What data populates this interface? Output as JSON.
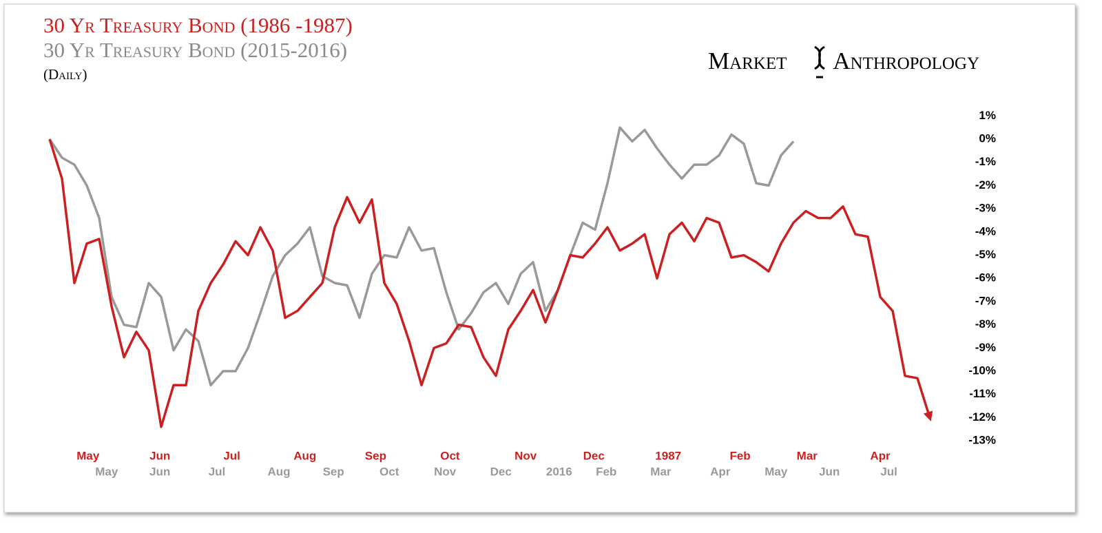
{
  "chart_data": {
    "type": "line",
    "title": "30 Yr Treasury Bond (1986 -1987)",
    "subtitle": "30 Yr Treasury Bond (2015-2016)",
    "note": "(Daily)",
    "brand": "Market Anthropology",
    "series": [
      {
        "name": "30 Yr Treasury Bond (1986 -1987)",
        "color": "#cc1f1f",
        "values": [
          0,
          -1.7,
          -6.2,
          -4.5,
          -4.3,
          -7.2,
          -9.4,
          -8.3,
          -9.1,
          -12.4,
          -10.6,
          -10.6,
          -7.4,
          -6.2,
          -5.4,
          -4.4,
          -5.0,
          -3.8,
          -4.8,
          -7.7,
          -7.4,
          -6.8,
          -6.2,
          -3.8,
          -2.5,
          -3.6,
          -2.6,
          -6.2,
          -7.1,
          -8.7,
          -10.6,
          -9.0,
          -8.8,
          -8.0,
          -8.1,
          -9.4,
          -10.2,
          -8.2,
          -7.4,
          -6.5,
          -7.9,
          -6.5,
          -5.0,
          -5.1,
          -4.5,
          -3.8,
          -4.8,
          -4.5,
          -4.1,
          -6.0,
          -4.1,
          -3.6,
          -4.4,
          -3.4,
          -3.6,
          -5.1,
          -5.0,
          -5.3,
          -5.7,
          -4.5,
          -3.6,
          -3.1,
          -3.4,
          -3.4,
          -2.9,
          -4.1,
          -4.2,
          -6.8,
          -7.4,
          -10.2,
          -10.3,
          -12.0
        ]
      },
      {
        "name": "30 Yr Treasury Bond (2015-2016)",
        "color": "#999999",
        "values": [
          0,
          -0.8,
          -1.1,
          -2.0,
          -3.4,
          -6.8,
          -8.0,
          -8.1,
          -6.2,
          -6.8,
          -9.1,
          -8.2,
          -8.7,
          -10.6,
          -10.0,
          -10.0,
          -9.0,
          -7.5,
          -5.9,
          -5.0,
          -4.5,
          -3.8,
          -5.9,
          -6.2,
          -6.3,
          -7.7,
          -5.8,
          -5.0,
          -5.1,
          -3.8,
          -4.8,
          -4.7,
          -6.6,
          -8.2,
          -7.5,
          -6.6,
          -6.2,
          -7.1,
          -5.8,
          -5.3,
          -7.4,
          -6.5,
          -5.0,
          -3.6,
          -3.9,
          -1.9,
          0.5,
          -0.1,
          0.4,
          -0.4,
          -1.1,
          -1.7,
          -1.1,
          -1.1,
          -0.7,
          0.2,
          -0.2,
          -1.9,
          -2.0,
          -0.7,
          -0.1
        ]
      }
    ],
    "xlim": [
      0,
      71
    ],
    "xticks": [
      {
        "value": 3.1,
        "label": "May"
      },
      {
        "value": 8.9,
        "label": "Jun"
      },
      {
        "value": 14.7,
        "label": "Jul"
      },
      {
        "value": 20.6,
        "label": "Aug"
      },
      {
        "value": 26.3,
        "label": "Sep"
      },
      {
        "value": 32.3,
        "label": "Oct"
      },
      {
        "value": 38.4,
        "label": "Nov"
      },
      {
        "value": 43.9,
        "label": "Dec"
      },
      {
        "value": 49.9,
        "label": "1987"
      },
      {
        "value": 55.7,
        "label": "Feb"
      },
      {
        "value": 61.1,
        "label": "Mar"
      },
      {
        "value": 67,
        "label": "Apr"
      }
    ],
    "x2ticks": [
      {
        "value": 4.6,
        "label": "May"
      },
      {
        "value": 8.9,
        "label": "Jun"
      },
      {
        "value": 13.5,
        "label": "Jul"
      },
      {
        "value": 18.5,
        "label": "Aug"
      },
      {
        "value": 22.9,
        "label": "Sep"
      },
      {
        "value": 27.4,
        "label": "Oct"
      },
      {
        "value": 31.9,
        "label": "Nov"
      },
      {
        "value": 36.4,
        "label": "Dec"
      },
      {
        "value": 41.1,
        "label": "2016"
      },
      {
        "value": 44.9,
        "label": "Feb"
      },
      {
        "value": 49.3,
        "label": "Mar"
      },
      {
        "value": 54.1,
        "label": "Apr"
      },
      {
        "value": 58.6,
        "label": "May"
      },
      {
        "value": 62.9,
        "label": "Jun"
      },
      {
        "value": 67.7,
        "label": "Jul"
      }
    ],
    "ylim": [
      -13.5,
      1.5
    ],
    "yticks": [
      {
        "value": 1,
        "label": "1%"
      },
      {
        "value": 0,
        "label": "0%"
      },
      {
        "value": -1,
        "label": "-1%"
      },
      {
        "value": -2,
        "label": "-2%"
      },
      {
        "value": -3,
        "label": "-3%"
      },
      {
        "value": -4,
        "label": "-4%"
      },
      {
        "value": -5,
        "label": "-5%"
      },
      {
        "value": -6,
        "label": "-6%"
      },
      {
        "value": -7,
        "label": "-7%"
      },
      {
        "value": -8,
        "label": "-8%"
      },
      {
        "value": -9,
        "label": "-9%"
      },
      {
        "value": -10,
        "label": "-10%"
      },
      {
        "value": -11,
        "label": "-11%"
      },
      {
        "value": -12,
        "label": "-12%"
      },
      {
        "value": -13,
        "label": "-13%"
      }
    ],
    "grid": false
  }
}
